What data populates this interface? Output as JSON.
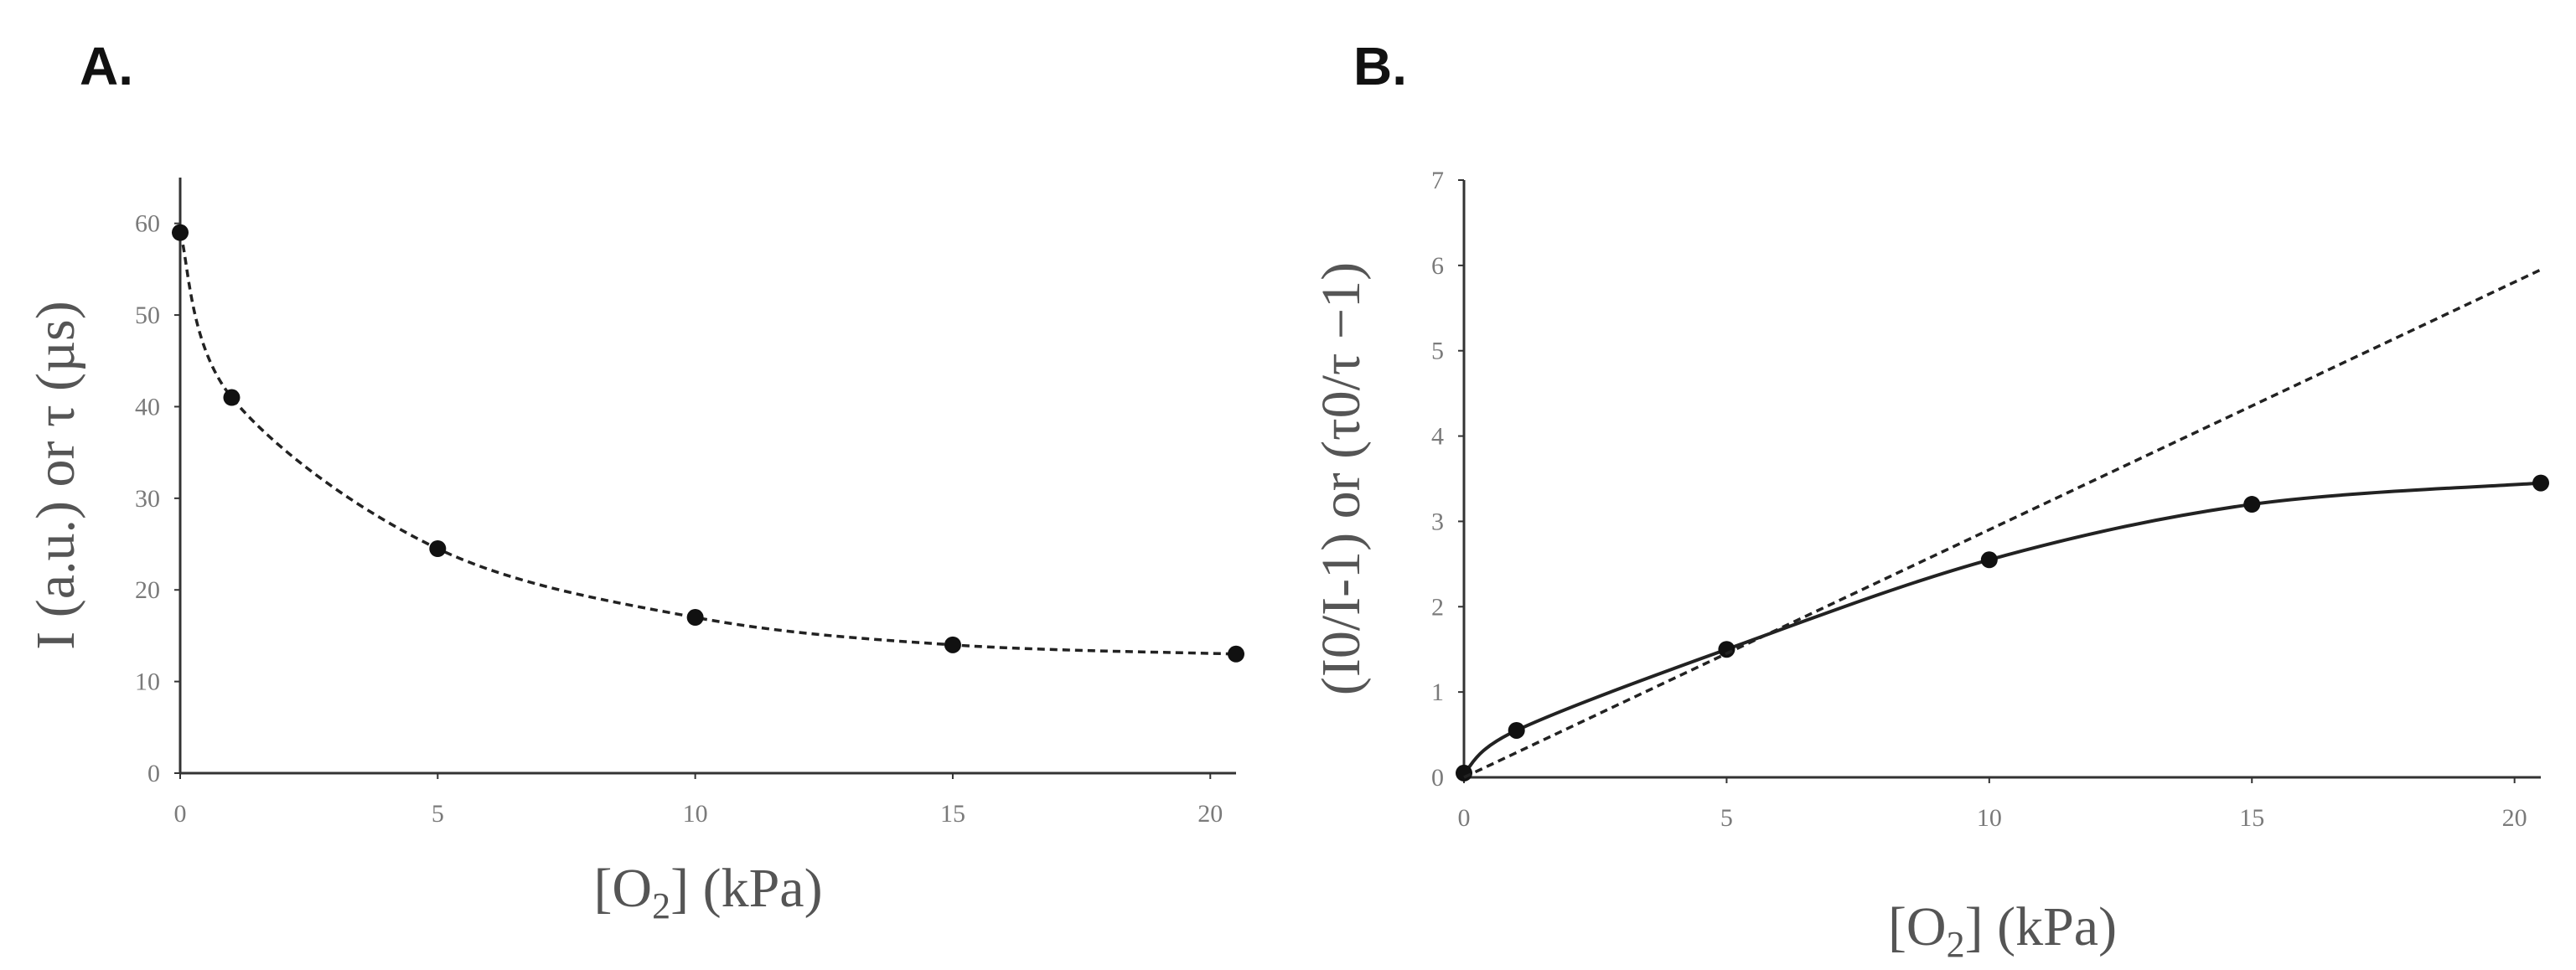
{
  "chart_data": [
    {
      "type": "scatter",
      "panel_label": "A.",
      "xlabel_main": "[O",
      "xlabel_sub": "2",
      "xlabel_rest": "] (kPa)",
      "ylabel": "I (a.u.) or τ (µs)",
      "xlim": [
        0,
        20.5
      ],
      "ylim": [
        0,
        65
      ],
      "xticks": [
        "0",
        "5",
        "10",
        "15",
        "20"
      ],
      "yticks": [
        "0",
        "10",
        "20",
        "30",
        "40",
        "50",
        "60"
      ],
      "grid": false,
      "series": [
        {
          "style": "points with dashed fit",
          "x": [
            0,
            1,
            5,
            10,
            15,
            20.5
          ],
          "y": [
            59,
            41,
            24.5,
            17,
            14,
            13
          ]
        }
      ]
    },
    {
      "type": "line",
      "panel_label": "B.",
      "xlabel_main": "[O",
      "xlabel_sub": "2",
      "xlabel_rest": "] (kPa)",
      "ylabel": "(I0/I-1) or (τ0/τ −1)",
      "xlim": [
        0,
        20.5
      ],
      "ylim": [
        0,
        7
      ],
      "xticks": [
        "0",
        "5",
        "10",
        "15",
        "20"
      ],
      "yticks": [
        "0",
        "1",
        "2",
        "3",
        "4",
        "5",
        "6",
        "7"
      ],
      "grid": false,
      "series": [
        {
          "style": "points with solid line",
          "x": [
            0,
            1,
            5,
            10,
            15,
            20.5
          ],
          "y": [
            0.05,
            0.55,
            1.5,
            2.55,
            3.2,
            3.45
          ]
        },
        {
          "style": "dashed linear",
          "x": [
            0,
            20.5
          ],
          "y": [
            0,
            5.95
          ]
        }
      ]
    }
  ]
}
